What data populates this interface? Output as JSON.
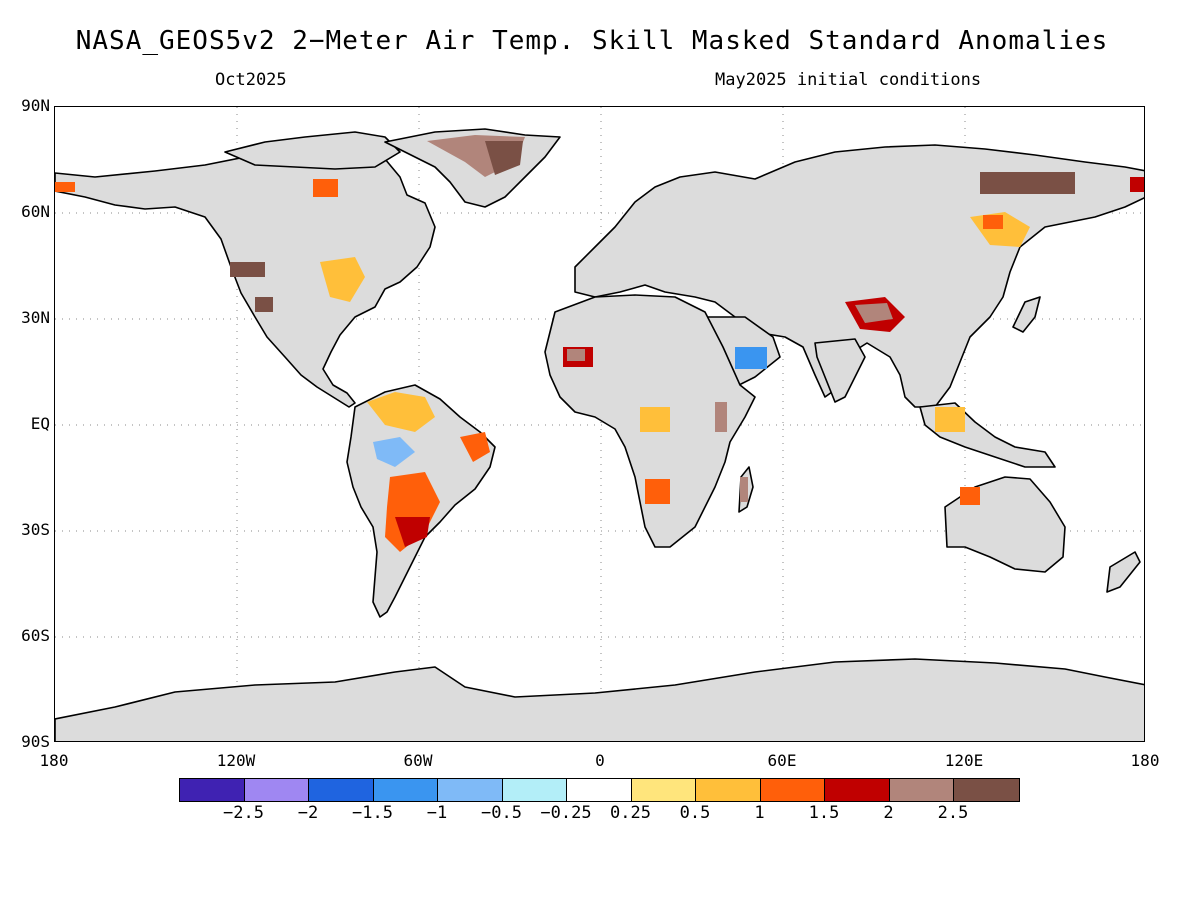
{
  "title": "NASA_GEOS5v2 2−Meter Air Temp. Skill Masked Standard Anomalies",
  "subtitle_left": "Oct2025",
  "subtitle_right": "May2025 initial conditions",
  "y_ticks": [
    "90N",
    "60N",
    "30N",
    "EQ",
    "30S",
    "60S",
    "90S"
  ],
  "x_ticks": [
    "180",
    "120W",
    "60W",
    "0",
    "60E",
    "120E",
    "180"
  ],
  "colorbar": {
    "colors": [
      "#3f22b2",
      "#9f87f2",
      "#1f64e0",
      "#3a95f0",
      "#7fbaf7",
      "#b3eef8",
      "#ffffff",
      "#ffe57c",
      "#ffbf3a",
      "#ff5f0a",
      "#c00000",
      "#b1857b",
      "#7a5045"
    ],
    "labels": [
      "−2.5",
      "−2",
      "−1.5",
      "−1",
      "−0.5",
      "−0.25",
      "0.25",
      "0.5",
      "1",
      "1.5",
      "2",
      "2.5"
    ]
  },
  "map": {
    "land_color": "#dcdcdc",
    "ocean_color": "#ffffff",
    "grid": true
  }
}
